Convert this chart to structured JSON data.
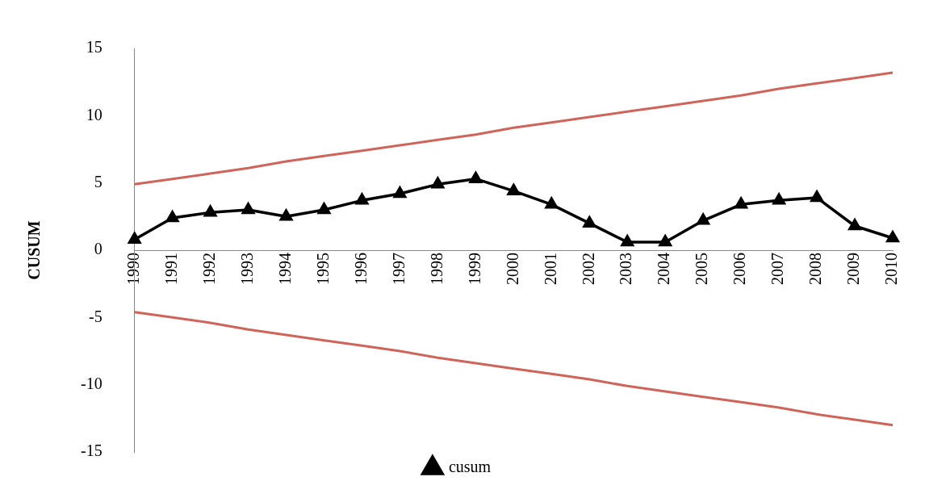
{
  "chart_data": {
    "type": "line",
    "ylabel": "CUSUM",
    "categories": [
      "1990",
      "1991",
      "1992",
      "1993",
      "1994",
      "1995",
      "1996",
      "1997",
      "1998",
      "1999",
      "2000",
      "2001",
      "2002",
      "2003",
      "2004",
      "2005",
      "2006",
      "2007",
      "2008",
      "2009",
      "2010"
    ],
    "series": [
      {
        "name": "cusum",
        "color": "#000000",
        "marker": "triangle",
        "values": [
          0.8,
          2.4,
          2.8,
          3.0,
          2.5,
          3.0,
          3.7,
          4.2,
          4.9,
          5.3,
          4.4,
          3.4,
          2.0,
          0.6,
          0.6,
          2.2,
          3.4,
          3.7,
          3.9,
          1.8,
          0.9
        ]
      },
      {
        "color": "#d0645a",
        "marker": "none",
        "values": [
          4.9,
          5.3,
          5.7,
          6.1,
          6.6,
          7.0,
          7.4,
          7.8,
          8.2,
          8.6,
          9.1,
          9.5,
          9.9,
          10.3,
          10.7,
          11.1,
          11.5,
          12.0,
          12.4,
          12.8,
          13.2
        ]
      },
      {
        "color": "#d0645a",
        "marker": "none",
        "values": [
          -4.6,
          -5.0,
          -5.4,
          -5.9,
          -6.3,
          -6.7,
          -7.1,
          -7.5,
          -8.0,
          -8.4,
          -8.8,
          -9.2,
          -9.6,
          -10.1,
          -10.5,
          -10.9,
          -11.3,
          -11.7,
          -12.2,
          -12.6,
          -13.0
        ]
      }
    ],
    "ylim": [
      -15,
      15
    ],
    "yticks": [
      -15,
      -10,
      -5,
      0,
      5,
      10,
      15
    ],
    "grid": false,
    "legend": "bottom",
    "line_style": "solid"
  }
}
